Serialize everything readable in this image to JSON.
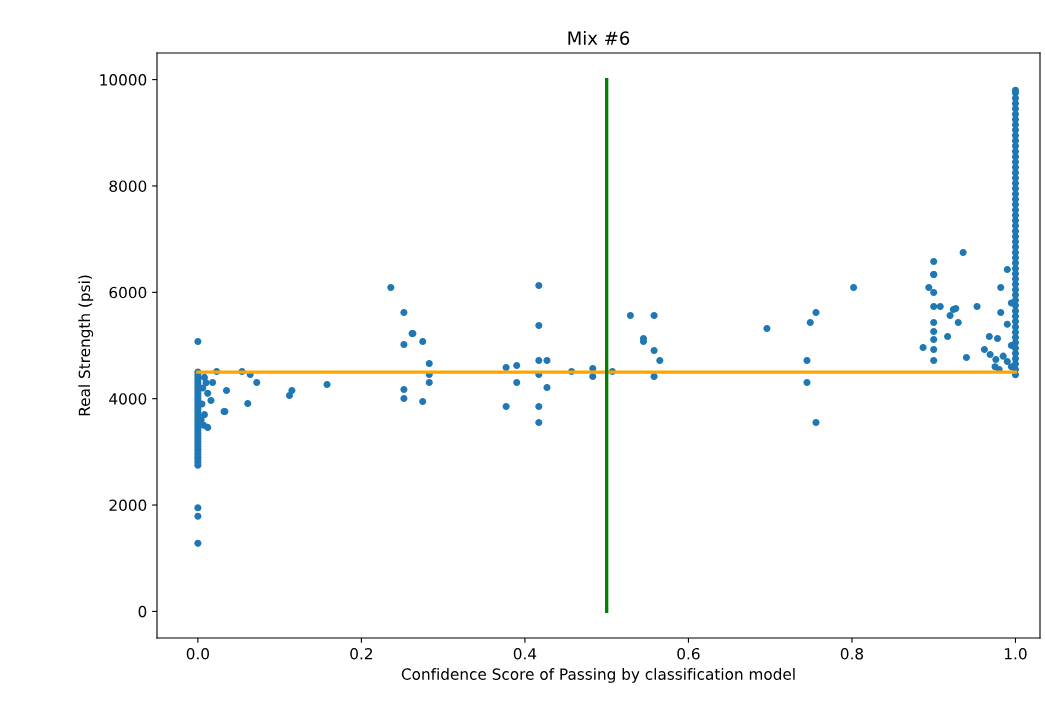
{
  "chart_data": {
    "type": "scatter",
    "title": "Mix #6",
    "xlabel": "Confidence Score of Passing by classification model",
    "ylabel": "Real Strength (psi)",
    "xlim": [
      -0.05,
      1.03
    ],
    "ylim": [
      -500,
      10500
    ],
    "xticks": [
      {
        "value": 0.0,
        "label": "0.0"
      },
      0.2,
      0.4,
      0.6,
      0.8,
      {
        "value": 1.0,
        "label": "1.0"
      }
    ],
    "yticks": [
      0,
      2000,
      4000,
      6000,
      8000,
      10000
    ],
    "grid": false,
    "legend": false,
    "marker": "circle",
    "series": [
      {
        "color": "#1f77b4",
        "x": [
          0,
          0,
          0,
          0,
          0,
          0,
          0,
          0,
          0,
          0,
          0,
          0,
          0,
          0,
          0,
          0,
          0,
          0,
          0,
          0,
          0,
          0,
          0,
          0,
          0,
          0,
          0,
          0,
          0,
          0,
          0,
          0,
          0,
          0,
          0,
          0,
          0,
          0,
          0,
          0,
          0.008,
          0.01,
          0.006,
          0.012,
          0.005,
          0.008,
          0.004,
          0.007,
          0.023,
          0.054,
          0.064,
          0.072,
          0.035,
          0.061,
          0.033,
          0.016,
          0.012,
          0.018,
          0.032,
          0.112,
          0.115,
          0.158,
          0.236,
          0.252,
          0.262,
          0.252,
          0.263,
          0.275,
          0.283,
          0.283,
          0.283,
          0.252,
          0.252,
          0.275,
          0.377,
          0.39,
          0.39,
          0.377,
          0.417,
          0.417,
          0.417,
          0.427,
          0.417,
          0.427,
          0.417,
          0.417,
          0.457,
          0.483,
          0.483,
          0.507,
          0.529,
          0.558,
          0.545,
          0.545,
          0.558,
          0.565,
          0.558,
          0.696,
          0.749,
          0.756,
          0.745,
          0.745,
          0.756,
          0.802,
          0.9,
          0.894,
          0.9,
          0.9,
          0.908,
          0.9,
          0.9,
          0.9,
          0.917,
          0.887,
          0.9,
          0.9,
          0.924,
          0.92,
          0.93,
          0.953,
          0.94,
          0.968,
          0.962,
          0.969,
          0.976,
          0.978,
          0.982,
          0.982,
          0.936,
          0.9,
          0.9,
          0.927,
          0.99,
          1,
          1,
          1,
          1,
          1,
          1,
          1,
          1,
          1,
          1,
          1,
          1,
          1,
          1,
          1,
          1,
          1,
          1,
          1,
          1,
          1,
          1,
          1,
          1,
          1,
          1,
          1,
          1,
          1,
          1,
          1,
          1,
          1,
          1,
          1,
          1,
          1,
          1,
          1,
          1,
          1,
          1,
          1,
          1,
          1,
          1,
          1,
          1,
          1,
          1,
          1,
          1,
          1,
          1,
          1,
          0.995,
          0.99,
          0.985,
          0.995,
          0.99,
          0.995,
          0.98,
          0.975
        ],
        "values": [
          4500,
          4450,
          4400,
          4350,
          4300,
          4250,
          4200,
          4150,
          4100,
          4050,
          4000,
          3950,
          3900,
          3850,
          3800,
          3750,
          3700,
          3650,
          3600,
          3550,
          3500,
          3450,
          3400,
          3350,
          3300,
          3250,
          3200,
          3150,
          3100,
          3050,
          3000,
          2950,
          2900,
          2850,
          2800,
          2750,
          5075,
          1950,
          1790,
          1280,
          4400,
          4300,
          4200,
          4100,
          3900,
          3700,
          3600,
          3500,
          4510,
          4510,
          4455,
          4305,
          4155,
          3910,
          3760,
          3966,
          3460,
          4305,
          3760,
          4060,
          4155,
          4267,
          6090,
          5620,
          5226,
          5019,
          5226,
          5075,
          4662,
          4455,
          4305,
          4173,
          4004,
          3947,
          4586,
          4624,
          4305,
          3853,
          6128,
          5376,
          4718,
          4718,
          4455,
          4211,
          3853,
          3553,
          4511,
          4568,
          4417,
          4511,
          5564,
          5564,
          5132,
          5075,
          4906,
          4718,
          4417,
          5320,
          5432,
          5620,
          4718,
          4305,
          3553,
          6090,
          6335,
          6090,
          5996,
          5733,
          5733,
          5432,
          5263,
          5113,
          5169,
          4962,
          4925,
          4718,
          5677,
          5564,
          5432,
          5733,
          4775,
          5169,
          4925,
          4831,
          4737,
          5132,
          6090,
          5620,
          6748,
          6579,
          6335,
          5695,
          6429,
          4450,
          4550,
          4650,
          4750,
          4850,
          4950,
          5050,
          5150,
          5250,
          5350,
          5450,
          5550,
          5650,
          5750,
          5850,
          5950,
          6050,
          6150,
          6250,
          6350,
          6450,
          6550,
          6650,
          6750,
          6850,
          6950,
          7050,
          7150,
          7250,
          7350,
          7450,
          7550,
          7650,
          7750,
          7850,
          7950,
          8050,
          8150,
          8250,
          8350,
          8450,
          8550,
          8650,
          8750,
          8850,
          8950,
          9050,
          9150,
          9250,
          9350,
          9450,
          9550,
          9650,
          9750,
          9800,
          4600,
          4700,
          4800,
          5000,
          5400,
          5800,
          4550,
          4600
        ]
      },
      {
        "type": "line",
        "color": "#ffa500",
        "x": [
          0,
          1
        ],
        "values": [
          4500,
          4500
        ],
        "marker": "none"
      },
      {
        "type": "line",
        "color": "#008000",
        "x": [
          0.5,
          0.5
        ],
        "values": [
          0,
          10000
        ],
        "marker": "none"
      }
    ]
  }
}
